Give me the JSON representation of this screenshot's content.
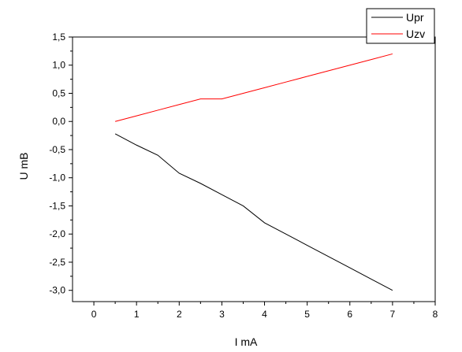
{
  "chart_data": {
    "type": "line",
    "title": "",
    "xlabel": "I  mA",
    "ylabel": "U  mB",
    "xlim": [
      -0.5,
      8
    ],
    "ylim": [
      -3.2,
      1.5
    ],
    "x_ticks": [
      0,
      1,
      2,
      3,
      4,
      5,
      6,
      7,
      8
    ],
    "x_tick_labels": [
      "0",
      "1",
      "2",
      "3",
      "4",
      "5",
      "6",
      "7",
      "8"
    ],
    "y_ticks": [
      1.5,
      1.0,
      0.5,
      0.0,
      -0.5,
      -1.0,
      -1.5,
      -2.0,
      -2.5,
      -3.0
    ],
    "y_tick_labels": [
      "1,5",
      "1,0",
      "0,5",
      "0,0",
      "-0,5",
      "-1,0",
      "-1,5",
      "-2,0",
      "-2,5",
      "-3,0"
    ],
    "grid": false,
    "legend_position": "top-right",
    "series": [
      {
        "name": "Upr",
        "color": "#000000",
        "x": [
          0.5,
          1,
          1.5,
          2,
          2.5,
          3,
          3.5,
          4,
          4.5,
          5,
          5.5,
          6,
          6.5,
          7
        ],
        "y": [
          -0.22,
          -0.42,
          -0.6,
          -0.92,
          -1.1,
          -1.3,
          -1.5,
          -1.8,
          -2.0,
          -2.2,
          -2.4,
          -2.6,
          -2.8,
          -3.0
        ]
      },
      {
        "name": "Uzv",
        "color": "#ff0000",
        "x": [
          0.5,
          1,
          1.5,
          2,
          2.5,
          3,
          3.5,
          4,
          4.5,
          5,
          5.5,
          6,
          6.5,
          7
        ],
        "y": [
          0.0,
          0.1,
          0.2,
          0.3,
          0.4,
          0.4,
          0.5,
          0.6,
          0.7,
          0.8,
          0.9,
          1.0,
          1.1,
          1.2
        ]
      }
    ]
  }
}
